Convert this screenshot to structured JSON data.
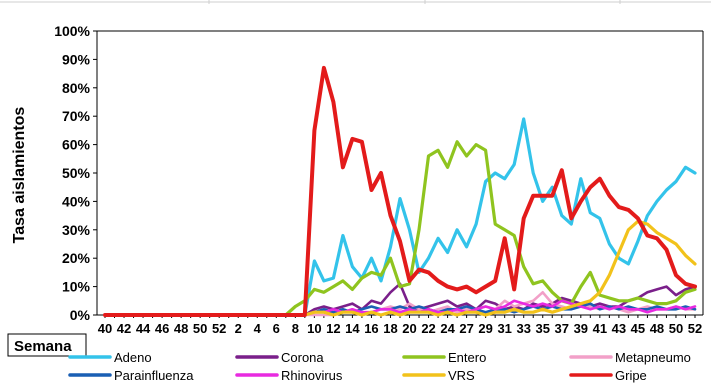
{
  "chart_data": {
    "type": "line",
    "ylabel": "Tasa aislamientos",
    "xlabel": "Semana",
    "y_tick_labels": [
      "0%",
      "10%",
      "20%",
      "30%",
      "40%",
      "50%",
      "60%",
      "70%",
      "80%",
      "90%",
      "100%"
    ],
    "ylim": [
      0,
      100
    ],
    "x_tick_labels": [
      "40",
      "42",
      "44",
      "46",
      "48",
      "50",
      "52",
      "2",
      "4",
      "6",
      "8",
      "10",
      "12",
      "14",
      "16",
      "18",
      "20",
      "22",
      "24",
      "27",
      "29",
      "31",
      "33",
      "35",
      "37",
      "39",
      "41",
      "43",
      "45",
      "48",
      "50",
      "52"
    ],
    "x_tick_index": [
      0,
      2,
      4,
      6,
      8,
      10,
      12,
      14,
      16,
      18,
      20,
      22,
      24,
      26,
      28,
      30,
      32,
      34,
      36,
      38,
      40,
      42,
      44,
      46,
      48,
      50,
      52,
      54,
      56,
      58,
      60,
      62
    ],
    "n_points": 63,
    "legend_position": "bottom",
    "grid": false,
    "series": [
      {
        "name": "Adeno",
        "color": "#33c3ea",
        "values": [
          0,
          0,
          0,
          0,
          0,
          0,
          0,
          0,
          0,
          0,
          0,
          0,
          0,
          0,
          0,
          0,
          0,
          0,
          0,
          0,
          0,
          0,
          19,
          12,
          13,
          28,
          17,
          13,
          20,
          12,
          24,
          41,
          30,
          15,
          20,
          27,
          22,
          30,
          24,
          32,
          47,
          50,
          48,
          53,
          69,
          50,
          40,
          45,
          35,
          32,
          48,
          36,
          34,
          25,
          20,
          18,
          26,
          35,
          40,
          44,
          47,
          52,
          50
        ]
      },
      {
        "name": "Corona",
        "color": "#7a1f8a",
        "values": [
          0,
          0,
          0,
          0,
          0,
          0,
          0,
          0,
          0,
          0,
          0,
          0,
          0,
          0,
          0,
          0,
          0,
          0,
          0,
          0,
          0,
          0,
          2,
          3,
          2,
          3,
          4,
          2,
          5,
          4,
          8,
          11,
          3,
          2,
          3,
          4,
          5,
          3,
          4,
          2,
          5,
          4,
          2,
          3,
          2,
          4,
          3,
          4,
          6,
          5,
          4,
          3,
          4,
          3,
          3,
          5,
          6,
          8,
          9,
          10,
          7,
          9,
          10
        ]
      },
      {
        "name": "Entero",
        "color": "#8fc41f",
        "values": [
          0,
          0,
          0,
          0,
          0,
          0,
          0,
          0,
          0,
          0,
          0,
          0,
          0,
          0,
          0,
          0,
          0,
          0,
          0,
          0,
          3,
          5,
          9,
          8,
          10,
          12,
          9,
          13,
          15,
          14,
          20,
          10,
          11,
          30,
          56,
          58,
          52,
          61,
          56,
          60,
          58,
          32,
          30,
          28,
          17,
          11,
          12,
          8,
          5,
          4,
          10,
          15,
          7,
          6,
          5,
          5,
          6,
          5,
          4,
          4,
          5,
          8,
          9
        ]
      },
      {
        "name": "Metapneumo",
        "color": "#f2a0c8",
        "values": [
          0,
          0,
          0,
          0,
          0,
          0,
          0,
          0,
          0,
          0,
          0,
          0,
          0,
          0,
          0,
          0,
          0,
          0,
          0,
          0,
          0,
          0,
          0,
          0,
          0,
          1,
          2,
          0,
          1,
          2,
          3,
          2,
          4,
          2,
          1,
          2,
          3,
          1,
          2,
          2,
          3,
          2,
          5,
          3,
          4,
          5,
          8,
          4,
          3,
          2,
          4,
          3,
          2,
          3,
          2,
          1,
          2,
          3,
          2,
          2,
          3,
          2,
          2
        ]
      },
      {
        "name": "Parainfluenza",
        "color": "#1a5fb4",
        "values": [
          0,
          0,
          0,
          0,
          0,
          0,
          0,
          0,
          0,
          0,
          0,
          0,
          0,
          0,
          0,
          0,
          0,
          0,
          0,
          0,
          0,
          0,
          1,
          2,
          1,
          2,
          1,
          2,
          3,
          2,
          2,
          3,
          2,
          3,
          2,
          1,
          2,
          2,
          3,
          2,
          1,
          2,
          2,
          1,
          2,
          3,
          2,
          3,
          2,
          2,
          3,
          4,
          2,
          3,
          2,
          3,
          2,
          2,
          3,
          2,
          2,
          3,
          2
        ]
      },
      {
        "name": "Rhinovirus",
        "color": "#e82ae0",
        "values": [
          0,
          0,
          0,
          0,
          0,
          0,
          0,
          0,
          0,
          0,
          0,
          0,
          0,
          0,
          0,
          0,
          0,
          0,
          0,
          0,
          0,
          0,
          1,
          1,
          2,
          1,
          2,
          1,
          1,
          2,
          2,
          1,
          2,
          1,
          2,
          1,
          1,
          2,
          1,
          2,
          3,
          2,
          3,
          5,
          4,
          3,
          4,
          3,
          5,
          4,
          3,
          2,
          3,
          2,
          3,
          2,
          2,
          1,
          2,
          2,
          3,
          2,
          3
        ]
      },
      {
        "name": "VRS",
        "color": "#f2c21b",
        "values": [
          0,
          0,
          0,
          0,
          0,
          0,
          0,
          0,
          0,
          0,
          0,
          0,
          0,
          0,
          0,
          0,
          0,
          0,
          0,
          0,
          0,
          0,
          1,
          1,
          0,
          1,
          1,
          0,
          1,
          0,
          1,
          0,
          1,
          1,
          1,
          0,
          1,
          0,
          1,
          1,
          0,
          1,
          1,
          2,
          1,
          1,
          2,
          1,
          2,
          3,
          4,
          5,
          8,
          14,
          22,
          30,
          33,
          32,
          29,
          27,
          25,
          21,
          18
        ]
      },
      {
        "name": "Gripe",
        "color": "#e31b1b",
        "values": [
          0,
          0,
          0,
          0,
          0,
          0,
          0,
          0,
          0,
          0,
          0,
          0,
          0,
          0,
          0,
          0,
          0,
          0,
          0,
          0,
          0,
          0,
          65,
          87,
          75,
          52,
          62,
          61,
          44,
          50,
          35,
          26,
          12,
          16,
          15,
          12,
          10,
          9,
          10,
          8,
          10,
          12,
          27,
          9,
          34,
          42,
          42,
          42,
          51,
          34,
          40,
          45,
          48,
          42,
          38,
          37,
          34,
          28,
          27,
          23,
          14,
          11,
          10
        ]
      }
    ]
  }
}
